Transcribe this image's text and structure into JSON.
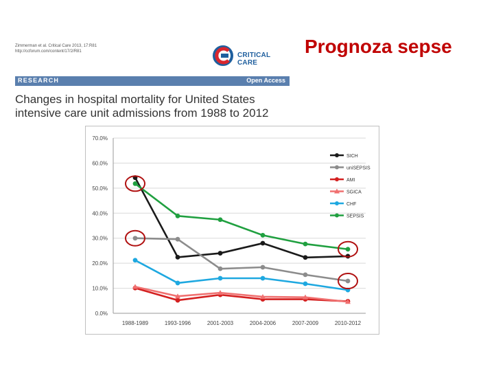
{
  "header": {
    "citation_line1": "Zimmerman et al. Critical Care 2013, 17:R81",
    "citation_line2": "http://ccforum.com/content/17/2/R81",
    "logo_text": "CRITICAL CARE",
    "slide_title": "Prognoza sepse"
  },
  "article": {
    "section": "RESEARCH",
    "access": "Open Access",
    "title": "Changes in hospital mortality for United States intensive care unit admissions from 1988 to 2012"
  },
  "colors": {
    "band": "#5a7fae",
    "slide_title": "#c00000",
    "highlight_circle": "#b01010"
  },
  "chart_data": {
    "type": "line",
    "title": "",
    "xlabel": "",
    "ylabel": "",
    "ylim": [
      0,
      70
    ],
    "y_ticks": [
      "0.0%",
      "10.0%",
      "20.0%",
      "30.0%",
      "40.0%",
      "50.0%",
      "60.0%",
      "70.0%"
    ],
    "y_tick_values": [
      0,
      10,
      20,
      30,
      40,
      50,
      60,
      70
    ],
    "categories": [
      "1988-1989",
      "1993-1996",
      "2001-2003",
      "2004-2006",
      "2007-2009",
      "2010-2012"
    ],
    "grid": true,
    "legend_position": "top-right",
    "series": [
      {
        "name": "SICH",
        "color": "#1a1a1a",
        "values": [
          54.2,
          22.4,
          24.0,
          28.0,
          22.3,
          22.8
        ]
      },
      {
        "name": "uniSEPSIS",
        "color": "#8c8c8c",
        "values": [
          30.0,
          29.6,
          17.8,
          18.4,
          15.4,
          12.9
        ]
      },
      {
        "name": "AMI",
        "color": "#d42020",
        "values": [
          10.1,
          5.2,
          7.4,
          5.6,
          5.6,
          4.8
        ]
      },
      {
        "name": "SGICA",
        "color": "#f07070",
        "values": [
          10.6,
          6.8,
          8.2,
          6.6,
          6.4,
          4.6
        ]
      },
      {
        "name": "CHF",
        "color": "#1ea8e0",
        "values": [
          21.2,
          12.1,
          14.0,
          14.0,
          11.8,
          9.3
        ]
      },
      {
        "name": "SEPSIS",
        "color": "#20a040",
        "values": [
          51.8,
          38.9,
          37.4,
          31.2,
          27.7,
          25.6
        ]
      }
    ],
    "highlighted_points": [
      {
        "series": "SEPSIS",
        "category": "1988-1989"
      },
      {
        "series": "uniSEPSIS",
        "category": "1988-1989"
      },
      {
        "series": "SEPSIS",
        "category": "2010-2012"
      },
      {
        "series": "uniSEPSIS",
        "category": "2010-2012"
      }
    ]
  }
}
